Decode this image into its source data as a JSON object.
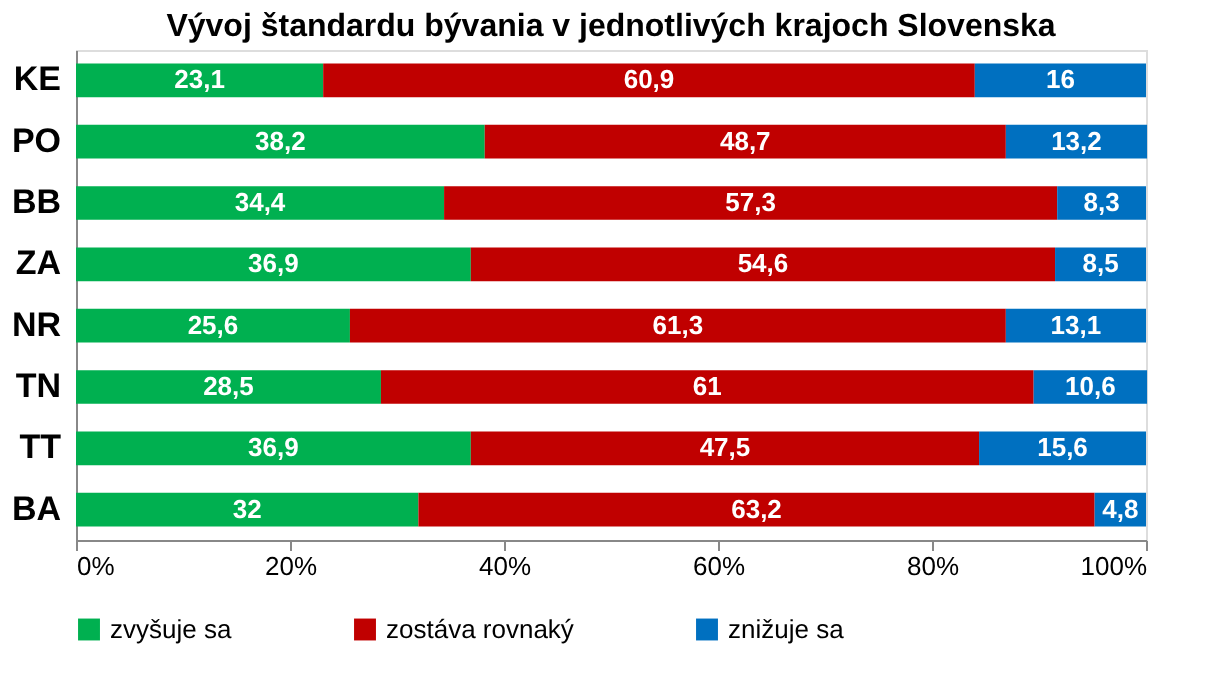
{
  "chart_data": {
    "type": "bar",
    "orientation": "horizontal",
    "stacked": true,
    "title": "Vývoj štandardu bývania v jednotlivých krajoch Slovenska",
    "categories": [
      "KE",
      "PO",
      "BB",
      "ZA",
      "NR",
      "TN",
      "TT",
      "BA"
    ],
    "series": [
      {
        "name": "zvyšuje sa",
        "color": "#00b050",
        "values": [
          23.1,
          38.2,
          34.4,
          36.9,
          25.6,
          28.5,
          36.9,
          32
        ],
        "value_labels": [
          "23,1",
          "38,2",
          "34,4",
          "36,9",
          "25,6",
          "28,5",
          "36,9",
          "32"
        ]
      },
      {
        "name": "zostáva rovnaký",
        "color": "#c00000",
        "values": [
          60.9,
          48.7,
          57.3,
          54.6,
          61.3,
          61,
          47.5,
          63.2
        ],
        "value_labels": [
          "60,9",
          "48,7",
          "57,3",
          "54,6",
          "61,3",
          "61",
          "47,5",
          "63,2"
        ]
      },
      {
        "name": "znižuje sa",
        "color": "#0070c0",
        "values": [
          16,
          13.2,
          8.3,
          8.5,
          13.1,
          10.6,
          15.6,
          4.8
        ],
        "value_labels": [
          "16",
          "13,2",
          "8,3",
          "8,5",
          "13,1",
          "10,6",
          "15,6",
          "4,8"
        ]
      }
    ],
    "xlim": [
      0,
      100
    ],
    "xticks": [
      {
        "value": 0,
        "label": "0%"
      },
      {
        "value": 20,
        "label": "20%"
      },
      {
        "value": 40,
        "label": "40%"
      },
      {
        "value": 60,
        "label": "60%"
      },
      {
        "value": 80,
        "label": "80%"
      },
      {
        "value": 100,
        "label": "100%"
      }
    ],
    "grid": false,
    "legend": "bottom"
  }
}
